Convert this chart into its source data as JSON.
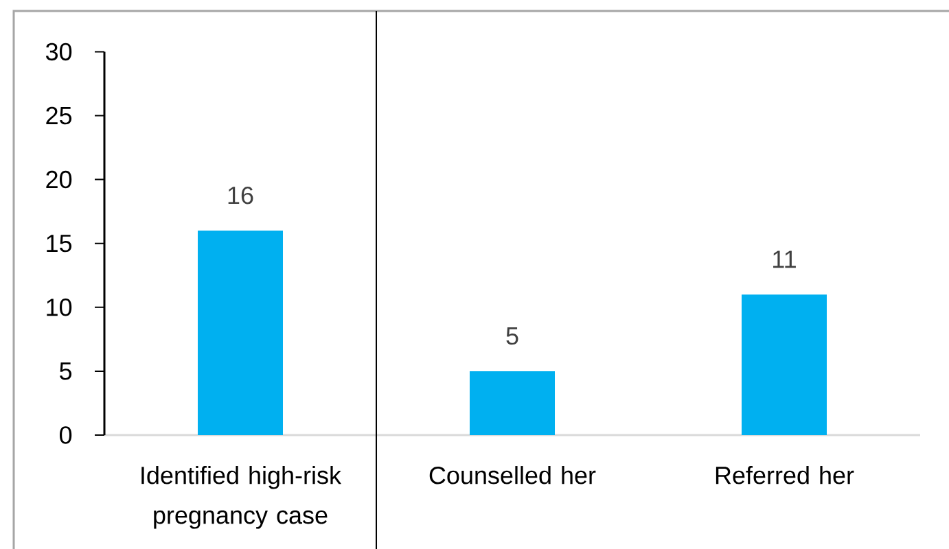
{
  "chart_data": {
    "type": "bar",
    "categories": [
      "Identified high-risk pregnancy case",
      "Counselled her",
      "Referred her"
    ],
    "values": [
      16,
      5,
      11
    ],
    "color": "#00b0f0",
    "ylim": [
      0,
      30
    ],
    "yticks": [
      0,
      5,
      10,
      15,
      20,
      25,
      30
    ],
    "data_labels": true
  }
}
